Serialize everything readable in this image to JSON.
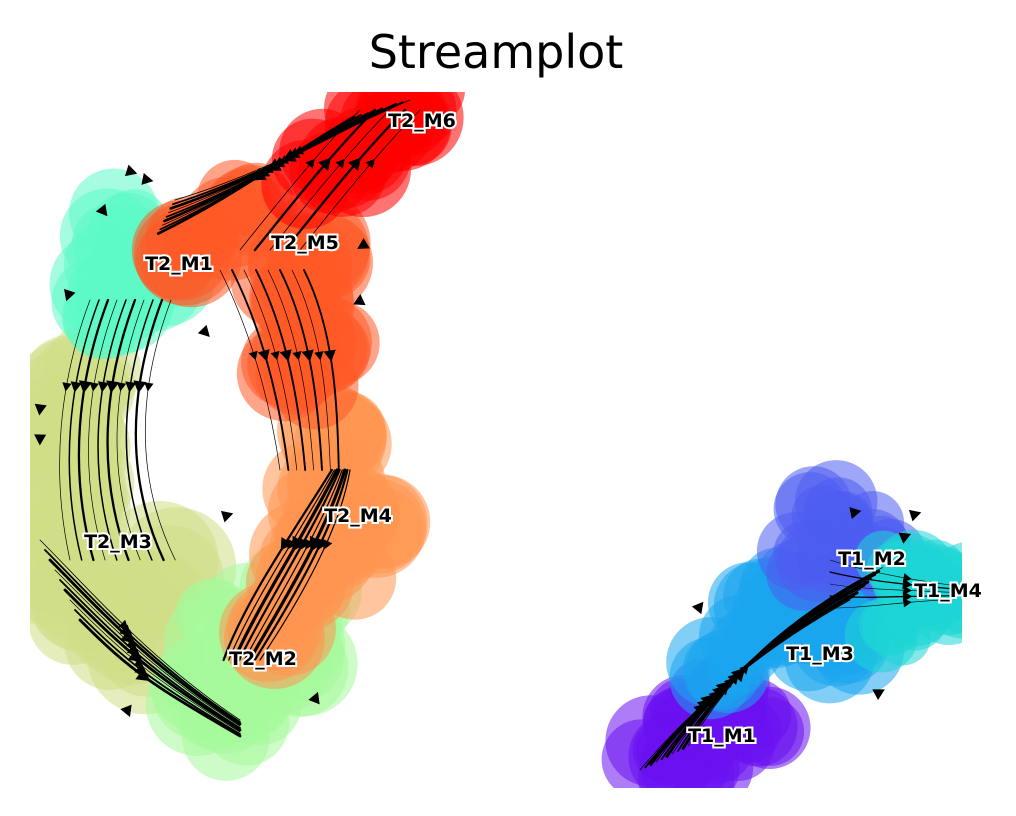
{
  "chart_data": {
    "type": "scatter",
    "title": "Streamplot",
    "xlabel": "",
    "ylabel": "",
    "axes_visible": false,
    "grid": false,
    "legend": "none",
    "colormap": "rainbow",
    "overlay": "velocity streamlines with arrows",
    "clusters": [
      {
        "name": "T2_M6",
        "color": "#ff0000"
      },
      {
        "name": "T2_M5",
        "color": "#ff5a26"
      },
      {
        "name": "T2_M1",
        "color": "#5cf9c6"
      },
      {
        "name": "T2_M4",
        "color": "#ff9650"
      },
      {
        "name": "T2_M3",
        "color": "#cfdf86"
      },
      {
        "name": "T2_M2",
        "color": "#a6f99a"
      },
      {
        "name": "T1_M2",
        "color": "#4d5cf0"
      },
      {
        "name": "T1_M4",
        "color": "#1ed6d6"
      },
      {
        "name": "T1_M3",
        "color": "#1aa6ee"
      },
      {
        "name": "T1_M1",
        "color": "#6a10f0"
      }
    ]
  }
}
